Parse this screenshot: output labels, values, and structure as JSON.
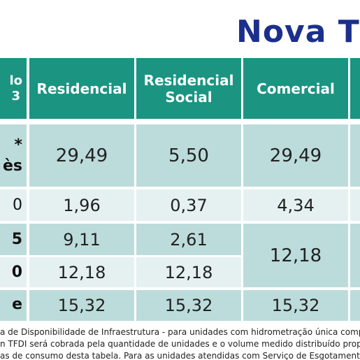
{
  "title": "Nova T",
  "left_header": "lo\n3",
  "columns": [
    {
      "label": "Residencial"
    },
    {
      "label": "Residencial\nSocial"
    },
    {
      "label": "Comercial"
    }
  ],
  "row_labels": [
    "*\nès",
    "0",
    "5",
    "0",
    "e"
  ],
  "rows": [
    [
      "29,49",
      "5,50",
      "29,49"
    ],
    [
      "1,96",
      "0,37",
      "4,34"
    ],
    [
      "9,11",
      "2,61",
      "12,18"
    ],
    [
      "12,18",
      "12,18",
      ""
    ],
    [
      "15,32",
      "15,32",
      "15,32"
    ]
  ],
  "footnotes": [
    "a de Disponibilidade de Infraestrutura - para unidades com hidrometração única comp",
    "n TFDI será cobrada pela quantidade de unidades e o volume medido distribuído propo",
    "as de consumo desta tabela. Para as unidades atendidas com Serviço de Esgotament"
  ]
}
